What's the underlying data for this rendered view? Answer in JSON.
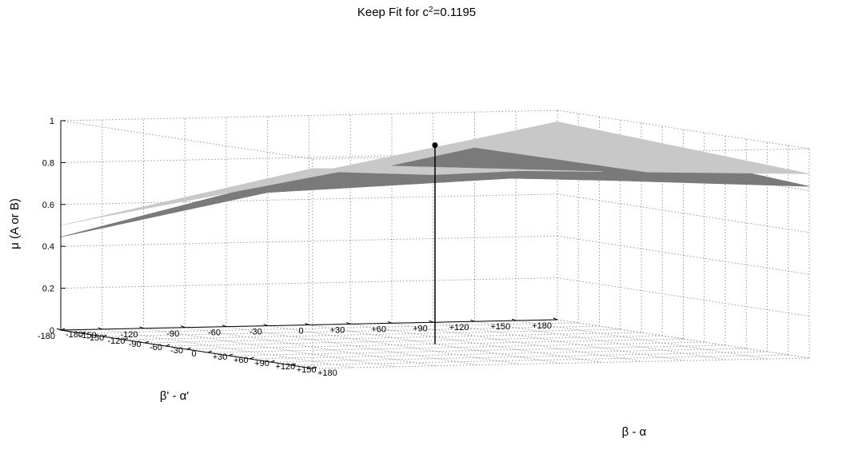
{
  "chart_data": {
    "type": "surface3d",
    "title_base": "Keep Fit for c",
    "title_sup": "2",
    "title_tail": "=0.1195",
    "xlabel": "β - α",
    "ylabel": "β' - α'",
    "zlabel": "μ (A or B)",
    "xlim": [
      -180,
      180
    ],
    "ylim": [
      -180,
      180
    ],
    "zlim": [
      0,
      1
    ],
    "x_ticks": [
      "-180",
      "-150",
      "-120",
      "-90",
      "-60",
      "-30",
      "0",
      "+30",
      "+60",
      "+90",
      "+120",
      "+150",
      "+180"
    ],
    "y_ticks": [
      "-180",
      "-150",
      "-120",
      "-90",
      "-60",
      "-30",
      "0",
      "+30",
      "+60",
      "+90",
      "+120",
      "+150",
      "+180"
    ],
    "z_ticks": [
      "0",
      "0.2",
      "0.4",
      "0.6",
      "0.8",
      "1"
    ],
    "grid": true,
    "series": [
      {
        "color": "#c8c8c8",
        "corners": {
          "x_min_y_max": 0.945,
          "x_max_y_max": 0.88,
          "x_min_y_min": 0.5,
          "x_max_y_min": 0.955
        }
      },
      {
        "color": "#7a7a7a",
        "corners": {
          "x_min_y_max": 0.905,
          "x_max_y_max": 0.82,
          "x_min_y_min": 0.445,
          "x_max_y_min": 0.94
        }
      }
    ],
    "bands": [
      {
        "y_from": -180,
        "y_to": -150,
        "top": "light"
      },
      {
        "y_from": -150,
        "y_to": -30,
        "top": "dark"
      },
      {
        "y_from": -30,
        "y_to": 30,
        "top": "light"
      },
      {
        "y_from": 30,
        "y_to": 120,
        "top": "dark"
      },
      {
        "y_from": 120,
        "y_to": 180,
        "top": "light"
      }
    ],
    "marker": {
      "x": 0,
      "y": 0,
      "z": 0.95
    }
  }
}
